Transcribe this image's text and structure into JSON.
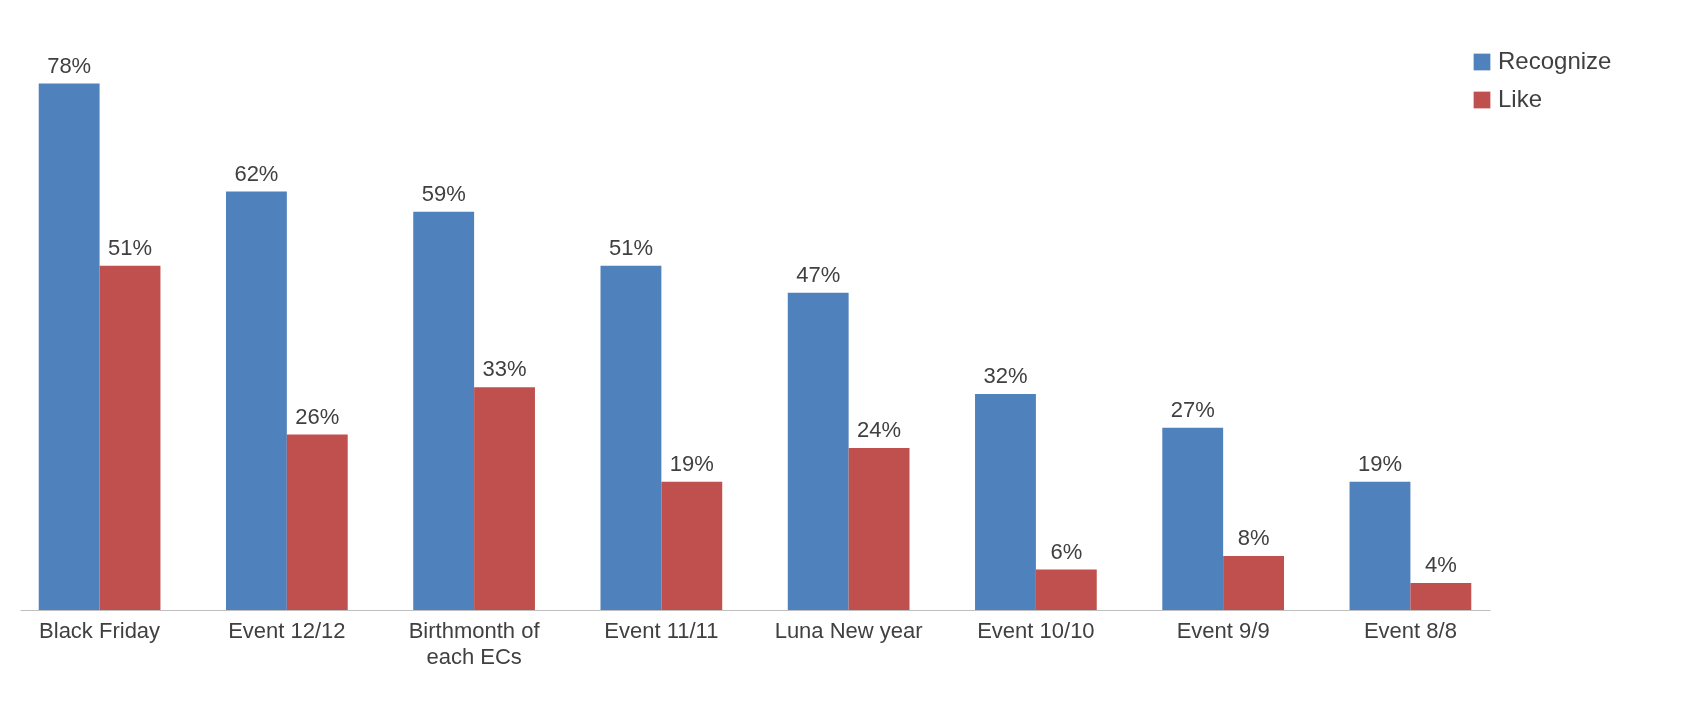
{
  "chart_data": {
    "type": "bar",
    "categories": [
      "Black Friday",
      "Event 12/12",
      "Birthmonth of each ECs",
      "Event 11/11",
      "Luna New year",
      "Event 10/10",
      "Event 9/9",
      "Event 8/8"
    ],
    "series": [
      {
        "name": "Recognize",
        "color": "#4f81bd",
        "values": [
          78,
          62,
          59,
          51,
          47,
          32,
          27,
          19
        ],
        "value_labels": [
          "78%",
          "62%",
          "59%",
          "51%",
          "47%",
          "32%",
          "27%",
          "19%"
        ]
      },
      {
        "name": "Like",
        "color": "#c0504d",
        "values": [
          51,
          26,
          33,
          19,
          24,
          6,
          8,
          4
        ],
        "value_labels": [
          "51%",
          "26%",
          "33%",
          "19%",
          "24%",
          "6%",
          "8%",
          "4%"
        ]
      }
    ],
    "legend": "top right",
    "grid": false
  }
}
